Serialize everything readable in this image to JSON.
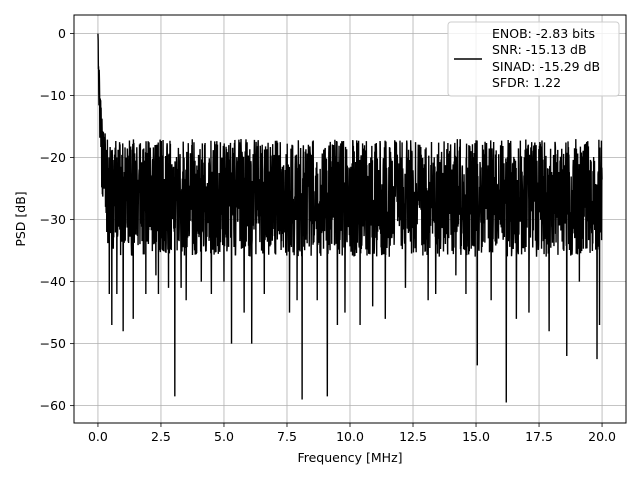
{
  "chart_data": {
    "type": "line",
    "title": "",
    "xlabel": "Frequency [MHz]",
    "ylabel": "PSD [dB]",
    "xlim": [
      -0.95,
      20.95
    ],
    "ylim": [
      -62.8,
      3.0
    ],
    "xticks": [
      0.0,
      2.5,
      5.0,
      7.5,
      10.0,
      12.5,
      15.0,
      17.5,
      20.0
    ],
    "xtick_labels": [
      "0.0",
      "2.5",
      "5.0",
      "7.5",
      "10.0",
      "12.5",
      "15.0",
      "17.5",
      "20.0"
    ],
    "yticks": [
      0,
      -10,
      -20,
      -30,
      -40,
      -50,
      -60
    ],
    "ytick_labels": [
      "0",
      "−10",
      "−20",
      "−30",
      "−40",
      "−50",
      "−60"
    ],
    "grid": true,
    "legend_position": "top-right",
    "legend_lines": [
      "ENOB: -2.83 bits",
      "SNR: -15.13 dB",
      "SINAD: -15.29 dB",
      "SFDR: 1.22"
    ],
    "series": [
      {
        "color": "#000000",
        "x_range": [
          0.0,
          20.0
        ],
        "trend": {
          "x": [
            0.0,
            0.05,
            0.1,
            0.2,
            0.4,
            0.8,
            1.5,
            3,
            5,
            10,
            15,
            20
          ],
          "center": [
            0,
            -9,
            -15,
            -20,
            -23,
            -24.5,
            -25.5,
            -26,
            -26.5,
            -26.5,
            -26.5,
            -26.5
          ],
          "upper": [
            0,
            -5,
            -10,
            -14,
            -16,
            -17,
            -17,
            -17,
            -17,
            -17,
            -17,
            -17
          ],
          "lower": [
            -3,
            -15,
            -20,
            -30,
            -34,
            -36,
            -36,
            -36,
            -36,
            -36,
            -36,
            -36
          ]
        },
        "dips": [
          {
            "x": 0.45,
            "y": -42
          },
          {
            "x": 0.55,
            "y": -47
          },
          {
            "x": 0.75,
            "y": -42
          },
          {
            "x": 1.0,
            "y": -48
          },
          {
            "x": 1.4,
            "y": -46
          },
          {
            "x": 1.9,
            "y": -42
          },
          {
            "x": 2.3,
            "y": -39
          },
          {
            "x": 2.4,
            "y": -42
          },
          {
            "x": 2.8,
            "y": -41
          },
          {
            "x": 3.05,
            "y": -58.5
          },
          {
            "x": 3.3,
            "y": -41
          },
          {
            "x": 3.5,
            "y": -43
          },
          {
            "x": 4.1,
            "y": -40
          },
          {
            "x": 4.5,
            "y": -42
          },
          {
            "x": 5.0,
            "y": -40
          },
          {
            "x": 5.3,
            "y": -50
          },
          {
            "x": 5.8,
            "y": -45
          },
          {
            "x": 6.1,
            "y": -50
          },
          {
            "x": 6.6,
            "y": -42
          },
          {
            "x": 7.6,
            "y": -45
          },
          {
            "x": 7.9,
            "y": -43
          },
          {
            "x": 8.1,
            "y": -59
          },
          {
            "x": 8.7,
            "y": -43
          },
          {
            "x": 9.1,
            "y": -58.5
          },
          {
            "x": 9.5,
            "y": -47
          },
          {
            "x": 9.8,
            "y": -45
          },
          {
            "x": 10.4,
            "y": -47
          },
          {
            "x": 10.9,
            "y": -44
          },
          {
            "x": 11.4,
            "y": -46
          },
          {
            "x": 12.2,
            "y": -41
          },
          {
            "x": 13.1,
            "y": -43
          },
          {
            "x": 13.4,
            "y": -42
          },
          {
            "x": 14.2,
            "y": -39
          },
          {
            "x": 14.6,
            "y": -42
          },
          {
            "x": 15.05,
            "y": -53.5
          },
          {
            "x": 15.6,
            "y": -43
          },
          {
            "x": 16.2,
            "y": -59.5
          },
          {
            "x": 16.6,
            "y": -46
          },
          {
            "x": 17.1,
            "y": -45
          },
          {
            "x": 17.9,
            "y": -48
          },
          {
            "x": 18.6,
            "y": -52
          },
          {
            "x": 19.1,
            "y": -40
          },
          {
            "x": 19.8,
            "y": -52.5
          },
          {
            "x": 19.9,
            "y": -47
          }
        ]
      }
    ]
  }
}
